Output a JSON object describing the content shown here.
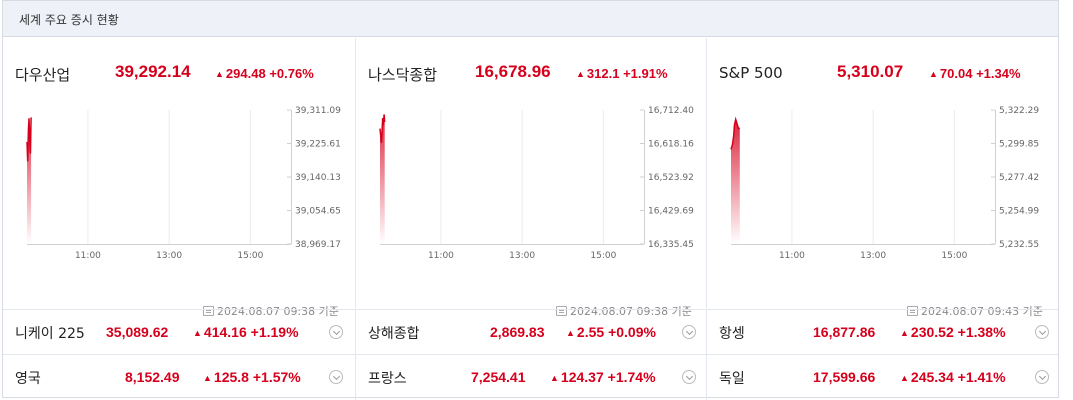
{
  "header": {
    "title": "세계 주요 증시 현황"
  },
  "up_arrow": "▲",
  "colors": {
    "up": "#d6001c",
    "axis": "#d0d0d0",
    "grid": "#ececec"
  },
  "panels": [
    {
      "name": "다우산업",
      "value": "39,292.14",
      "change": "294.48",
      "percent": "+0.76%",
      "timestamp": "2024.08.07 09:38 기준",
      "chart_data": {
        "type": "line",
        "y_ticks": [
          "39,311.09",
          "39,225.61",
          "39,140.13",
          "39,054.65",
          "38,969.17"
        ],
        "ylim": [
          38969.17,
          39311.09
        ],
        "x_ticks": [
          "11:00",
          "13:00",
          "15:00"
        ],
        "session": [
          "09:30",
          "16:00"
        ],
        "points": [
          [
            0,
            39230
          ],
          [
            1,
            39180
          ],
          [
            2,
            39260
          ],
          [
            3,
            39290
          ],
          [
            4,
            39240
          ],
          [
            5,
            39200
          ],
          [
            6,
            39292.14
          ]
        ]
      }
    },
    {
      "name": "나스닥종합",
      "value": "16,678.96",
      "change": "312.1",
      "percent": "+1.91%",
      "timestamp": "2024.08.07 09:38 기준",
      "chart_data": {
        "type": "line",
        "y_ticks": [
          "16,712.40",
          "16,618.16",
          "16,523.92",
          "16,429.69",
          "16,335.45"
        ],
        "ylim": [
          16335.45,
          16712.4
        ],
        "x_ticks": [
          "11:00",
          "13:00",
          "15:00"
        ],
        "session": [
          "09:30",
          "16:00"
        ],
        "points": [
          [
            0,
            16660
          ],
          [
            1,
            16640
          ],
          [
            2,
            16620
          ],
          [
            3,
            16650
          ],
          [
            4,
            16690
          ],
          [
            5,
            16670
          ],
          [
            6,
            16700
          ],
          [
            7,
            16678.96
          ]
        ]
      }
    },
    {
      "name": "S&P 500",
      "value": "5,310.07",
      "change": "70.04",
      "percent": "+1.34%",
      "timestamp": "2024.08.07 09:43 기준",
      "chart_data": {
        "type": "line",
        "y_ticks": [
          "5,322.29",
          "5,299.85",
          "5,277.42",
          "5,254.99",
          "5,232.55"
        ],
        "ylim": [
          5232.55,
          5322.29
        ],
        "x_ticks": [
          "11:00",
          "13:00",
          "15:00"
        ],
        "session": [
          "09:30",
          "16:00"
        ],
        "points": [
          [
            0,
            5296
          ],
          [
            2,
            5299
          ],
          [
            4,
            5305
          ],
          [
            5,
            5312
          ],
          [
            7,
            5316
          ],
          [
            9,
            5313
          ],
          [
            11,
            5310
          ],
          [
            13,
            5310.07
          ]
        ]
      }
    }
  ],
  "rows": [
    [
      {
        "name": "니케이 225",
        "value": "35,089.62",
        "change": "414.16",
        "percent": "+1.19%"
      },
      {
        "name": "상해종합",
        "value": "2,869.83",
        "change": "2.55",
        "percent": "+0.09%"
      },
      {
        "name": "항셍",
        "value": "16,877.86",
        "change": "230.52",
        "percent": "+1.38%"
      }
    ],
    [
      {
        "name": "영국",
        "value": "8,152.49",
        "change": "125.8",
        "percent": "+1.57%"
      },
      {
        "name": "프랑스",
        "value": "7,254.41",
        "change": "124.37",
        "percent": "+1.74%"
      },
      {
        "name": "독일",
        "value": "17,599.66",
        "change": "245.34",
        "percent": "+1.41%"
      }
    ]
  ]
}
